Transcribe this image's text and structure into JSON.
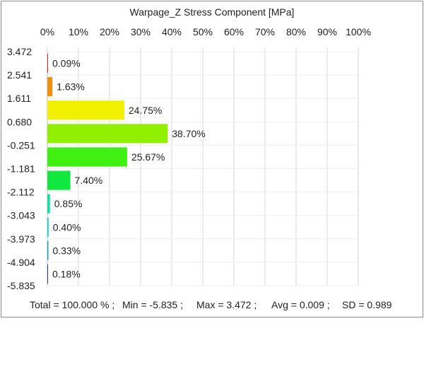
{
  "chart_data": {
    "type": "bar",
    "orientation": "horizontal",
    "title": "Warpage_Z Stress Component [MPa]",
    "x_ticks": [
      "0%",
      "10%",
      "20%",
      "30%",
      "40%",
      "50%",
      "60%",
      "70%",
      "80%",
      "90%",
      "100%"
    ],
    "xlim": [
      0,
      100
    ],
    "bin_edges": [
      "3.472",
      "2.541",
      "1.611",
      "0.680",
      "-0.251",
      "-1.181",
      "-2.112",
      "-3.043",
      "-3.973",
      "-4.904",
      "-5.835"
    ],
    "values": [
      0.09,
      1.63,
      24.75,
      38.7,
      25.67,
      7.4,
      0.85,
      0.4,
      0.33,
      0.18
    ],
    "value_labels": [
      "0.09%",
      "1.63%",
      "24.75%",
      "38.70%",
      "25.67%",
      "7.40%",
      "0.85%",
      "0.40%",
      "0.33%",
      "0.18%"
    ],
    "colors": [
      "#e8241c",
      "#f09010",
      "#f0f000",
      "#90f000",
      "#40f010",
      "#10e840",
      "#10e0a0",
      "#10d0d0",
      "#10a0c0",
      "#2040a0"
    ],
    "grid": true
  },
  "footer": {
    "total": "Total = 100.000 % ;",
    "min": "Min = -5.835 ;",
    "max": "Max = 3.472 ;",
    "avg": "Avg = 0.009 ;",
    "sd": "SD = 0.989"
  }
}
